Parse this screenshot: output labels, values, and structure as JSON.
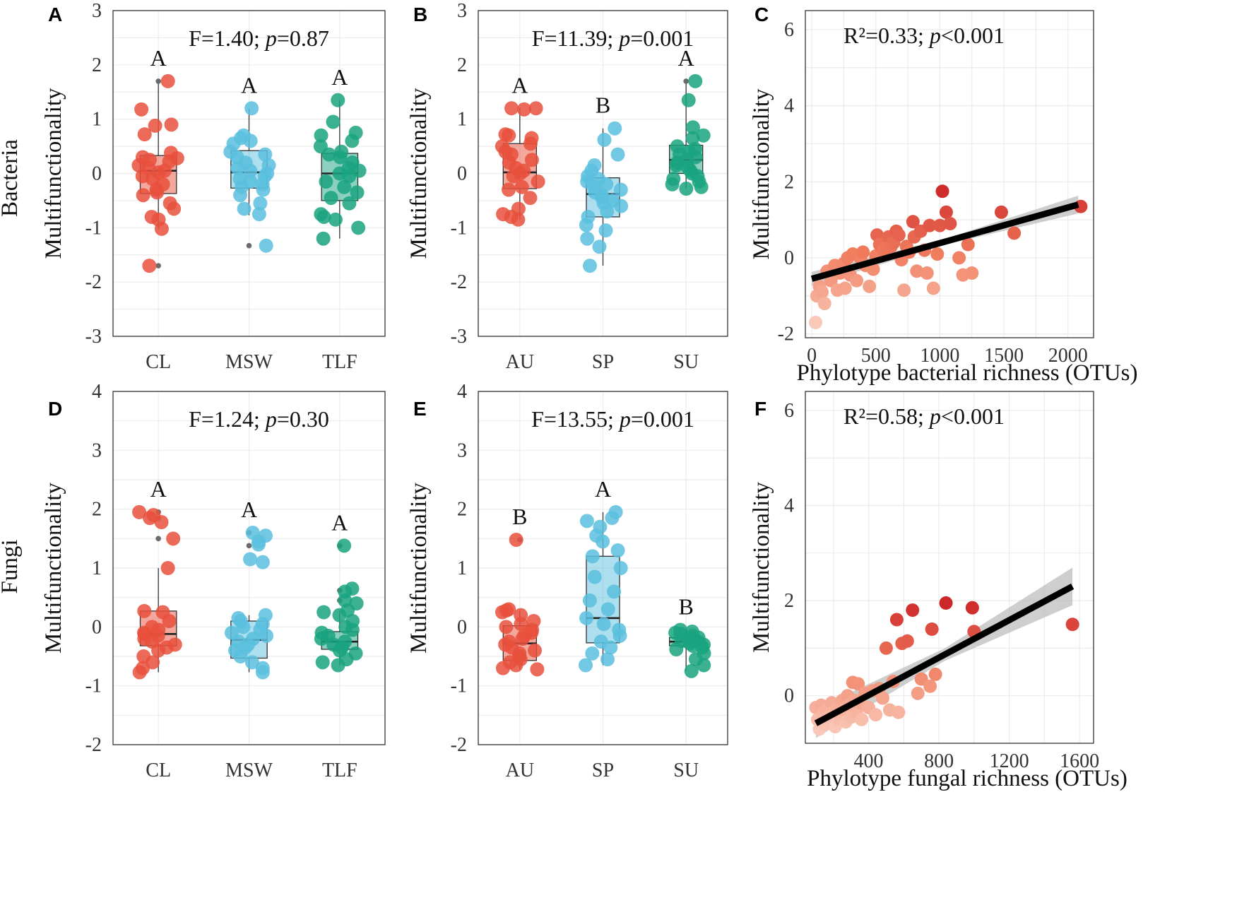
{
  "figure": {
    "row_labels": [
      "Bacteria",
      "Fungi"
    ]
  },
  "colors": {
    "CL": "#e8503c",
    "MSW": "#5bbfde",
    "TLF": "#1aa37f",
    "AU": "#e8503c",
    "SP": "#5bbfde",
    "SU": "#1aa37f",
    "outlier": "#6b6b6b",
    "fit_line": "#000000",
    "ci_band": "#bdbdbd"
  },
  "chart_data": [
    {
      "panel": "A",
      "type": "box",
      "row": "Bacteria",
      "ylabel": "Multifunctionality",
      "ylim": [
        -3,
        3
      ],
      "yticks": [
        -3,
        -2,
        -1,
        0,
        1,
        2,
        3
      ],
      "categories": [
        "CL",
        "MSW",
        "TLF"
      ],
      "annotation": {
        "prefix": "F=1.40; ",
        "p_symbol": "p",
        "suffix": "=0.87"
      },
      "groups": [
        {
          "name": "CL",
          "letter": "A",
          "q1": -0.37,
          "median": 0.05,
          "q3": 0.33,
          "whisker_low": -1.02,
          "whisker_high": 1.7,
          "outliers": [
            1.7,
            -1.7
          ],
          "points": [
            1.7,
            1.18,
            0.88,
            0.9,
            0.72,
            0.38,
            0.3,
            0.28,
            0.25,
            0.22,
            0.15,
            0.1,
            0.05,
            0.02,
            -0.05,
            -0.1,
            -0.2,
            -0.3,
            -0.35,
            -0.4,
            -0.55,
            -0.65,
            -0.8,
            -0.85,
            -1.02,
            -1.7
          ]
        },
        {
          "name": "MSW",
          "letter": "A",
          "q1": -0.27,
          "median": 0.02,
          "q3": 0.42,
          "whisker_low": -0.77,
          "whisker_high": 1.2,
          "outliers": [
            -1.33
          ],
          "points": [
            1.2,
            0.7,
            0.65,
            0.6,
            0.55,
            0.4,
            0.35,
            0.3,
            0.2,
            0.15,
            0.1,
            0.05,
            0.0,
            -0.05,
            -0.1,
            -0.15,
            -0.2,
            -0.25,
            -0.3,
            -0.4,
            -0.55,
            -0.65,
            -0.75,
            -1.33
          ]
        },
        {
          "name": "TLF",
          "letter": "A",
          "q1": -0.5,
          "median": 0.0,
          "q3": 0.37,
          "whisker_low": -1.2,
          "whisker_high": 1.35,
          "outliers": [],
          "points": [
            1.35,
            0.95,
            0.75,
            0.7,
            0.6,
            0.5,
            0.4,
            0.35,
            0.3,
            0.2,
            0.1,
            0.05,
            0.0,
            -0.05,
            -0.15,
            -0.25,
            -0.35,
            -0.45,
            -0.55,
            -0.75,
            -0.8,
            -0.85,
            -1.0,
            -1.2
          ]
        }
      ]
    },
    {
      "panel": "B",
      "type": "box",
      "row": "Bacteria",
      "ylabel": "Multifunctionality",
      "ylim": [
        -3,
        3
      ],
      "yticks": [
        -3,
        -2,
        -1,
        0,
        1,
        2,
        3
      ],
      "categories": [
        "AU",
        "SP",
        "SU"
      ],
      "annotation": {
        "prefix": "F=11.39; ",
        "p_symbol": "p",
        "suffix": "=0.001"
      },
      "groups": [
        {
          "name": "AU",
          "letter": "A",
          "q1": -0.28,
          "median": 0.02,
          "q3": 0.55,
          "whisker_low": -0.85,
          "whisker_high": 1.2,
          "outliers": [],
          "points": [
            1.2,
            1.2,
            1.18,
            0.72,
            0.7,
            0.65,
            0.55,
            0.5,
            0.4,
            0.35,
            0.25,
            0.2,
            0.1,
            0.05,
            0.0,
            -0.05,
            -0.15,
            -0.25,
            -0.3,
            -0.45,
            -0.65,
            -0.75,
            -0.8,
            -0.85
          ]
        },
        {
          "name": "SP",
          "letter": "B",
          "q1": -0.8,
          "median": -0.38,
          "q3": -0.08,
          "whisker_low": -1.7,
          "whisker_high": 0.83,
          "outliers": [],
          "points": [
            0.83,
            0.62,
            0.35,
            0.15,
            0.05,
            -0.05,
            -0.1,
            -0.15,
            -0.2,
            -0.25,
            -0.3,
            -0.35,
            -0.4,
            -0.45,
            -0.5,
            -0.55,
            -0.6,
            -0.7,
            -0.8,
            -0.95,
            -1.05,
            -1.2,
            -1.35,
            -1.7
          ]
        },
        {
          "name": "SU",
          "letter": "A",
          "q1": 0.0,
          "median": 0.25,
          "q3": 0.52,
          "whisker_low": -0.28,
          "whisker_high": 1.7,
          "outliers": [
            1.7
          ],
          "points": [
            1.7,
            1.35,
            0.85,
            0.7,
            0.65,
            0.5,
            0.45,
            0.4,
            0.35,
            0.3,
            0.25,
            0.2,
            0.15,
            0.1,
            0.05,
            0.0,
            -0.05,
            -0.1,
            -0.15,
            -0.2,
            -0.25,
            -0.28
          ]
        }
      ]
    },
    {
      "panel": "C",
      "type": "scatter",
      "row": "Bacteria",
      "xlabel": "Phylotype bacterial richness (OTUs)",
      "ylabel": "Multifunctionality",
      "xlim": [
        -50,
        2200
      ],
      "ylim": [
        -2.1,
        6.5
      ],
      "xticks": [
        0,
        500,
        1000,
        1500,
        2000
      ],
      "yticks": [
        -2,
        0,
        2,
        4,
        6
      ],
      "annotation": {
        "prefix": "R²=0.33; ",
        "p_symbol": "p",
        "suffix": "<0.001"
      },
      "fit": {
        "x0": 0,
        "y0": -0.55,
        "x1": 2080,
        "y1": 1.4,
        "ci": 0.13
      },
      "points": [
        [
          30,
          -1.7
        ],
        [
          40,
          -1.0
        ],
        [
          60,
          -0.75
        ],
        [
          80,
          -0.9
        ],
        [
          100,
          -1.2
        ],
        [
          120,
          -0.35
        ],
        [
          150,
          -0.6
        ],
        [
          180,
          -0.2
        ],
        [
          200,
          -0.85
        ],
        [
          220,
          -0.4
        ],
        [
          250,
          -0.15
        ],
        [
          260,
          -0.8
        ],
        [
          280,
          0.0
        ],
        [
          300,
          -0.45
        ],
        [
          320,
          0.1
        ],
        [
          350,
          -0.6
        ],
        [
          380,
          0.0
        ],
        [
          400,
          0.15
        ],
        [
          420,
          -0.2
        ],
        [
          450,
          -0.75
        ],
        [
          480,
          -0.3
        ],
        [
          500,
          0.05
        ],
        [
          510,
          0.6
        ],
        [
          530,
          0.35
        ],
        [
          560,
          0.2
        ],
        [
          580,
          0.25
        ],
        [
          600,
          0.55
        ],
        [
          620,
          0.3
        ],
        [
          640,
          0.4
        ],
        [
          660,
          0.7
        ],
        [
          680,
          0.6
        ],
        [
          700,
          -0.05
        ],
        [
          720,
          -0.85
        ],
        [
          740,
          0.3
        ],
        [
          760,
          0.15
        ],
        [
          790,
          0.95
        ],
        [
          800,
          0.55
        ],
        [
          820,
          -0.35
        ],
        [
          850,
          0.7
        ],
        [
          880,
          0.2
        ],
        [
          900,
          -0.4
        ],
        [
          920,
          0.85
        ],
        [
          950,
          -0.8
        ],
        [
          980,
          0.1
        ],
        [
          1000,
          0.85
        ],
        [
          1020,
          1.75
        ],
        [
          1050,
          1.2
        ],
        [
          1080,
          0.9
        ],
        [
          1150,
          0.0
        ],
        [
          1180,
          -0.45
        ],
        [
          1220,
          0.35
        ],
        [
          1250,
          -0.4
        ],
        [
          1480,
          1.2
        ],
        [
          1580,
          0.65
        ],
        [
          2100,
          1.35
        ]
      ]
    },
    {
      "panel": "D",
      "type": "box",
      "row": "Fungi",
      "ylabel": "Multifunctionality",
      "ylim": [
        -2,
        4
      ],
      "yticks": [
        -2,
        -1,
        0,
        1,
        2,
        3,
        4
      ],
      "categories": [
        "CL",
        "MSW",
        "TLF"
      ],
      "annotation": {
        "prefix": "F=1.24; ",
        "p_symbol": "p",
        "suffix": "=0.30"
      },
      "groups": [
        {
          "name": "CL",
          "letter": "A",
          "q1": -0.32,
          "median": -0.12,
          "q3": 0.27,
          "whisker_low": -0.77,
          "whisker_high": 1.0,
          "outliers": [
            1.95,
            1.85,
            1.5
          ],
          "points": [
            1.95,
            1.9,
            1.85,
            1.78,
            1.5,
            1.0,
            0.27,
            0.25,
            0.1,
            0.0,
            -0.05,
            -0.1,
            -0.12,
            -0.15,
            -0.2,
            -0.25,
            -0.3,
            -0.35,
            -0.4,
            -0.5,
            -0.6,
            -0.7,
            -0.77
          ]
        },
        {
          "name": "MSW",
          "letter": "A",
          "q1": -0.53,
          "median": -0.22,
          "q3": 0.1,
          "whisker_low": -0.77,
          "whisker_high": 0.2,
          "outliers": [
            1.6,
            1.38
          ],
          "points": [
            1.6,
            1.55,
            1.45,
            1.4,
            1.15,
            1.1,
            0.2,
            0.15,
            0.1,
            0.05,
            0.0,
            -0.05,
            -0.1,
            -0.15,
            -0.2,
            -0.25,
            -0.3,
            -0.35,
            -0.4,
            -0.5,
            -0.6,
            -0.7,
            -0.77
          ]
        },
        {
          "name": "TLF",
          "letter": "A",
          "q1": -0.38,
          "median": -0.25,
          "q3": -0.08,
          "whisker_low": -0.65,
          "whisker_high": 0.28,
          "outliers": [
            1.38,
            0.62,
            0.45
          ],
          "points": [
            1.38,
            0.65,
            0.6,
            0.45,
            0.4,
            0.28,
            0.25,
            0.2,
            0.1,
            0.0,
            -0.05,
            -0.1,
            -0.15,
            -0.2,
            -0.25,
            -0.3,
            -0.35,
            -0.4,
            -0.45,
            -0.55,
            -0.6,
            -0.65
          ]
        }
      ]
    },
    {
      "panel": "E",
      "type": "box",
      "row": "Fungi",
      "ylabel": "Multifunctionality",
      "ylim": [
        -2,
        4
      ],
      "yticks": [
        -2,
        -1,
        0,
        1,
        2,
        3,
        4
      ],
      "categories": [
        "AU",
        "SP",
        "SU"
      ],
      "annotation": {
        "prefix": "F=13.55; ",
        "p_symbol": "p",
        "suffix": "=0.001"
      },
      "groups": [
        {
          "name": "AU",
          "letter": "B",
          "q1": -0.57,
          "median": -0.28,
          "q3": 0.02,
          "whisker_low": -0.72,
          "whisker_high": 0.28,
          "outliers": [
            1.48
          ],
          "points": [
            1.48,
            0.3,
            0.28,
            0.25,
            0.2,
            0.1,
            0.05,
            0.0,
            -0.05,
            -0.1,
            -0.15,
            -0.2,
            -0.25,
            -0.3,
            -0.35,
            -0.4,
            -0.45,
            -0.5,
            -0.55,
            -0.6,
            -0.65,
            -0.7,
            -0.72
          ]
        },
        {
          "name": "SP",
          "letter": "A",
          "q1": -0.27,
          "median": 0.15,
          "q3": 1.2,
          "whisker_low": -0.65,
          "whisker_high": 1.95,
          "outliers": [],
          "points": [
            1.95,
            1.85,
            1.8,
            1.7,
            1.55,
            1.45,
            1.3,
            1.2,
            1.0,
            0.85,
            0.6,
            0.45,
            0.3,
            0.15,
            0.05,
            -0.05,
            -0.15,
            -0.25,
            -0.35,
            -0.45,
            -0.55,
            -0.65
          ]
        },
        {
          "name": "SU",
          "letter": "B",
          "q1": -0.32,
          "median": -0.25,
          "q3": -0.18,
          "whisker_low": -0.75,
          "whisker_high": -0.05,
          "outliers": [],
          "points": [
            -0.05,
            -0.08,
            -0.1,
            -0.12,
            -0.15,
            -0.18,
            -0.2,
            -0.22,
            -0.24,
            -0.25,
            -0.27,
            -0.28,
            -0.3,
            -0.32,
            -0.35,
            -0.38,
            -0.45,
            -0.55,
            -0.65,
            -0.75
          ]
        }
      ]
    },
    {
      "panel": "F",
      "type": "scatter",
      "row": "Fungi",
      "xlabel": "Phylotype fungal richness (OTUs)",
      "ylabel": "Multifunctionality",
      "xlim": [
        40,
        1680
      ],
      "ylim": [
        -1.0,
        6.4
      ],
      "xticks": [
        400,
        800,
        1200,
        1600
      ],
      "yticks": [
        0,
        2,
        4,
        6
      ],
      "annotation": {
        "prefix": "R²=0.58; ",
        "p_symbol": "p",
        "suffix": "<0.001"
      },
      "fit": {
        "x0": 100,
        "y0": -0.58,
        "x1": 1560,
        "y1": 2.3,
        "ci": 0.22
      },
      "points": [
        [
          100,
          -0.25
        ],
        [
          110,
          -0.5
        ],
        [
          120,
          -0.7
        ],
        [
          130,
          -0.2
        ],
        [
          140,
          -0.4
        ],
        [
          150,
          -0.6
        ],
        [
          160,
          -0.3
        ],
        [
          170,
          -0.45
        ],
        [
          180,
          -0.55
        ],
        [
          190,
          -0.15
        ],
        [
          200,
          -0.35
        ],
        [
          210,
          -0.65
        ],
        [
          220,
          -0.25
        ],
        [
          230,
          -0.5
        ],
        [
          240,
          -0.4
        ],
        [
          250,
          -0.1
        ],
        [
          260,
          -0.3
        ],
        [
          270,
          -0.55
        ],
        [
          280,
          0.0
        ],
        [
          290,
          -0.2
        ],
        [
          300,
          -0.45
        ],
        [
          310,
          0.28
        ],
        [
          320,
          -0.1
        ],
        [
          330,
          -0.35
        ],
        [
          340,
          0.25
        ],
        [
          350,
          -0.15
        ],
        [
          360,
          -0.5
        ],
        [
          380,
          0.05
        ],
        [
          400,
          -0.25
        ],
        [
          420,
          0.1
        ],
        [
          440,
          -0.4
        ],
        [
          460,
          0.15
        ],
        [
          480,
          -0.05
        ],
        [
          500,
          1.0
        ],
        [
          520,
          -0.3
        ],
        [
          540,
          0.3
        ],
        [
          560,
          1.6
        ],
        [
          570,
          -0.35
        ],
        [
          590,
          1.1
        ],
        [
          620,
          1.15
        ],
        [
          650,
          1.8
        ],
        [
          680,
          0.05
        ],
        [
          700,
          0.35
        ],
        [
          750,
          0.2
        ],
        [
          760,
          1.4
        ],
        [
          780,
          0.45
        ],
        [
          840,
          1.95
        ],
        [
          990,
          1.85
        ],
        [
          1000,
          1.35
        ],
        [
          1560,
          1.5
        ]
      ]
    }
  ]
}
